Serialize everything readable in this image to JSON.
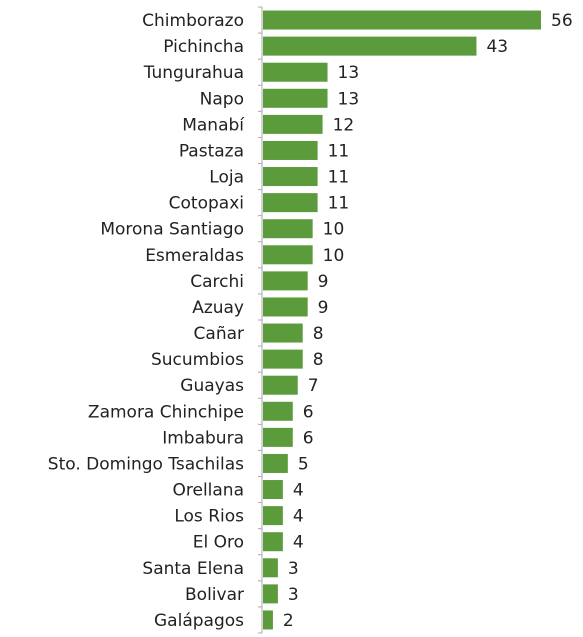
{
  "chart_data": {
    "type": "bar",
    "orientation": "horizontal",
    "categories": [
      "Chimborazo",
      "Pichincha",
      "Tungurahua",
      "Napo",
      "Manabí",
      "Pastaza",
      "Loja",
      "Cotopaxi",
      "Morona Santiago",
      "Esmeraldas",
      "Carchi",
      "Azuay",
      "Cañar",
      "Sucumbios",
      "Guayas",
      "Zamora Chinchipe",
      "Imbabura",
      "Sto. Domingo Tsachilas",
      "Orellana",
      "Los Rios",
      "El Oro",
      "Santa Elena",
      "Bolivar",
      "Galápagos"
    ],
    "values": [
      56,
      43,
      13,
      13,
      12,
      11,
      11,
      11,
      10,
      10,
      9,
      9,
      8,
      8,
      7,
      6,
      6,
      5,
      4,
      4,
      4,
      3,
      3,
      2
    ],
    "color": "#5b9b3b"
  }
}
